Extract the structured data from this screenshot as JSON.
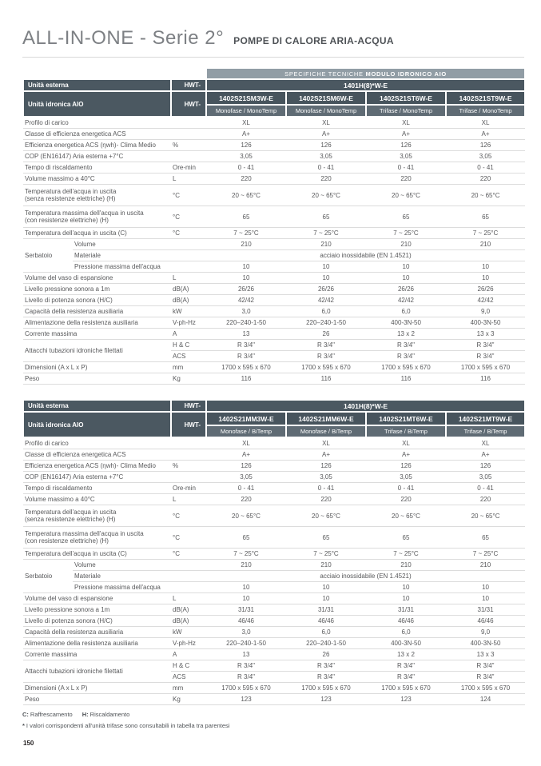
{
  "page": {
    "title": "ALL-IN-ONE - Serie 2°",
    "subtitle": "POMPE DI CALORE ARIA-ACQUA",
    "page_number": "150",
    "legend": {
      "c_key": "C:",
      "c_text": "Raffrescamento",
      "h_key": "H:",
      "h_text": "Riscaldamento"
    },
    "note_star": "*",
    "note_text": "I valori corrispondenti all'unità trifase sono consultabili in tabella tra parentesi"
  },
  "colors": {
    "header_dark": "#4b5861",
    "header_model": "#47545d",
    "header_subtype": "#5f6b74",
    "band_gray": "#919da5",
    "body_text": "#58595b",
    "divider": "#dcdcdc"
  },
  "tables": [
    {
      "spec_band": {
        "normal": "SPECIFICHE TECNICHE ",
        "bold": "MODULO IDRONICO AIO"
      },
      "header": {
        "outdoor_label": "Unità esterna",
        "outdoor_prefix": "HWT-",
        "outdoor_model": "1401H(8)*W-E",
        "hydronic_label": "Unità idronica AIO",
        "hydronic_prefix": "HWT-",
        "models": [
          "1402S21SM3W-E",
          "1402S21SM6W-E",
          "1402S21ST6W-E",
          "1402S21ST9W-E"
        ],
        "subtypes": [
          "Monofase / MonoTemp",
          "Monofase / MonoTemp",
          "Trifase / MonoTemp",
          "Trifase / MonoTemp"
        ]
      },
      "rows": [
        {
          "label": "Profilo di carico",
          "unit": "",
          "values": [
            "XL",
            "XL",
            "XL",
            "XL"
          ]
        },
        {
          "label": "Classe di efficienza energetica ACS",
          "unit": "",
          "values": [
            "A+",
            "A+",
            "A+",
            "A+"
          ]
        },
        {
          "label": "Efficienza energetica ACS (ηwh)- Clima Medio",
          "unit": "%",
          "values": [
            "126",
            "126",
            "126",
            "126"
          ]
        },
        {
          "label": "COP (EN16147) Aria esterna +7°C",
          "unit": "",
          "values": [
            "3,05",
            "3,05",
            "3,05",
            "3,05"
          ]
        },
        {
          "label": "Tempo di riscaldamento",
          "unit": "Ore-min",
          "values": [
            "0 - 41",
            "0 - 41",
            "0 - 41",
            "0 - 41"
          ]
        },
        {
          "label": "Volume massimo a 40°C",
          "unit": "L",
          "values": [
            "220",
            "220",
            "220",
            "220"
          ]
        },
        {
          "label": "Temperatura dell'acqua in uscita\n(senza resistenze elettriche) (H)",
          "unit": "°C",
          "tall": true,
          "values": [
            "20 ~ 65°C",
            "20 ~ 65°C",
            "20 ~ 65°C",
            "20 ~ 65°C"
          ]
        },
        {
          "label": "Temperatura massima dell'acqua in uscita\n(con resistenze elettriche) (H)",
          "unit": "°C",
          "tall": true,
          "values": [
            "65",
            "65",
            "65",
            "65"
          ]
        },
        {
          "label": "Temperatura dell'acqua in uscita (C)",
          "unit": "°C",
          "values": [
            "7 ~ 25°C",
            "7 ~ 25°C",
            "7 ~ 25°C",
            "7 ~ 25°C"
          ]
        },
        {
          "group": "Serbatoio",
          "group_span": 3,
          "sublabel": "Volume",
          "unit": "",
          "values": [
            "210",
            "210",
            "210",
            "210"
          ]
        },
        {
          "sublabel": "Materiale",
          "unit": "",
          "value_span": "acciaio inossidabile (EN 1.4521)"
        },
        {
          "sublabel": "Pressione massima dell'acqua",
          "unit": "",
          "values": [
            "10",
            "10",
            "10",
            "10"
          ]
        },
        {
          "label": "Volume del vaso di espansione",
          "unit": "L",
          "values": [
            "10",
            "10",
            "10",
            "10"
          ]
        },
        {
          "label": "Livello pressione sonora a 1m",
          "unit": "dB(A)",
          "values": [
            "26/26",
            "26/26",
            "26/26",
            "26/26"
          ]
        },
        {
          "label": "Livello di potenza sonora (H/C)",
          "unit": "dB(A)",
          "values": [
            "42/42",
            "42/42",
            "42/42",
            "42/42"
          ]
        },
        {
          "label": "Capacità della resistenza ausiliaria",
          "unit": "kW",
          "values": [
            "3,0",
            "6,0",
            "6,0",
            "9,0"
          ]
        },
        {
          "label": "Alimentazione della resistenza ausiliaria",
          "unit": "V-ph-Hz",
          "values": [
            "220–240-1-50",
            "220–240-1-50",
            "400-3N-50",
            "400-3N-50"
          ]
        },
        {
          "label": "Corrente massima",
          "unit": "A",
          "values": [
            "13",
            "26",
            "13 x 2",
            "13 x 3"
          ]
        },
        {
          "group": "Attacchi tubazioni idroniche filettati",
          "group_full": true,
          "group_span": 2,
          "unit": "H & C",
          "values": [
            "R 3/4\"",
            "R 3/4\"",
            "R 3/4\"",
            "R 3/4\""
          ]
        },
        {
          "in_group": true,
          "unit": "ACS",
          "values": [
            "R 3/4\"",
            "R 3/4\"",
            "R 3/4\"",
            "R 3/4\""
          ]
        },
        {
          "label": "Dimensioni (A x L x P)",
          "unit": "mm",
          "values": [
            "1700 x 595 x 670",
            "1700 x 595 x 670",
            "1700 x 595 x 670",
            "1700 x 595 x 670"
          ]
        },
        {
          "label": "Peso",
          "unit": "Kg",
          "values": [
            "116",
            "116",
            "116",
            "116"
          ]
        }
      ]
    },
    {
      "header": {
        "outdoor_label": "Unità esterna",
        "outdoor_prefix": "HWT-",
        "outdoor_model": "1401H(8)*W-E",
        "hydronic_label": "Unità idronica AIO",
        "hydronic_prefix": "HWT-",
        "models": [
          "1402S21MM3W-E",
          "1402S21MM6W-E",
          "1402S21MT6W-E",
          "1402S21MT9W-E"
        ],
        "subtypes": [
          "Monofase / BiTemp",
          "Monofase / BiTemp",
          "Trifase / BiTemp",
          "Trifase / BiTemp"
        ]
      },
      "rows": [
        {
          "label": "Profilo di carico",
          "unit": "",
          "values": [
            "XL",
            "XL",
            "XL",
            "XL"
          ]
        },
        {
          "label": "Classe di efficienza energetica ACS",
          "unit": "",
          "values": [
            "A+",
            "A+",
            "A+",
            "A+"
          ]
        },
        {
          "label": "Efficienza energetica ACS (ηwh)- Clima Medio",
          "unit": "%",
          "values": [
            "126",
            "126",
            "126",
            "126"
          ]
        },
        {
          "label": "COP (EN16147) Aria esterna +7°C",
          "unit": "",
          "values": [
            "3,05",
            "3,05",
            "3,05",
            "3,05"
          ]
        },
        {
          "label": "Tempo di riscaldamento",
          "unit": "Ore-min",
          "values": [
            "0 - 41",
            "0 - 41",
            "0 - 41",
            "0 - 41"
          ]
        },
        {
          "label": "Volume massimo a 40°C",
          "unit": "L",
          "values": [
            "220",
            "220",
            "220",
            "220"
          ]
        },
        {
          "label": "Temperatura dell'acqua in uscita\n(senza resistenze elettriche) (H)",
          "unit": "°C",
          "tall": true,
          "values": [
            "20 ~ 65°C",
            "20 ~ 65°C",
            "20 ~ 65°C",
            "20 ~ 65°C"
          ]
        },
        {
          "label": "Temperatura massima dell'acqua in uscita\n(con resistenze elettriche) (H)",
          "unit": "°C",
          "tall": true,
          "values": [
            "65",
            "65",
            "65",
            "65"
          ]
        },
        {
          "label": "Temperatura dell'acqua in uscita (C)",
          "unit": "°C",
          "values": [
            "7 ~ 25°C",
            "7 ~ 25°C",
            "7 ~ 25°C",
            "7 ~ 25°C"
          ]
        },
        {
          "group": "Serbatoio",
          "group_span": 3,
          "sublabel": "Volume",
          "unit": "",
          "values": [
            "210",
            "210",
            "210",
            "210"
          ]
        },
        {
          "sublabel": "Materiale",
          "unit": "",
          "value_span": "acciaio inossidabile (EN 1.4521)"
        },
        {
          "sublabel": "Pressione massima dell'acqua",
          "unit": "",
          "values": [
            "10",
            "10",
            "10",
            "10"
          ]
        },
        {
          "label": "Volume del vaso di espansione",
          "unit": "L",
          "values": [
            "10",
            "10",
            "10",
            "10"
          ]
        },
        {
          "label": "Livello pressione sonora a 1m",
          "unit": "dB(A)",
          "values": [
            "31/31",
            "31/31",
            "31/31",
            "31/31"
          ]
        },
        {
          "label": "Livello di potenza sonora (H/C)",
          "unit": "dB(A)",
          "values": [
            "46/46",
            "46/46",
            "46/46",
            "46/46"
          ]
        },
        {
          "label": "Capacità della resistenza ausiliaria",
          "unit": "kW",
          "values": [
            "3,0",
            "6,0",
            "6,0",
            "9,0"
          ]
        },
        {
          "label": "Alimentazione della resistenza ausiliaria",
          "unit": "V-ph-Hz",
          "values": [
            "220–240-1-50",
            "220–240-1-50",
            "400-3N-50",
            "400-3N-50"
          ]
        },
        {
          "label": "Corrente massima",
          "unit": "A",
          "values": [
            "13",
            "26",
            "13 x 2",
            "13 x 3"
          ]
        },
        {
          "group": "Attacchi tubazioni idroniche filettati",
          "group_full": true,
          "group_span": 2,
          "unit": "H & C",
          "values": [
            "R 3/4\"",
            "R 3/4\"",
            "R 3/4\"",
            "R 3/4\""
          ]
        },
        {
          "in_group": true,
          "unit": "ACS",
          "values": [
            "R 3/4\"",
            "R 3/4\"",
            "R 3/4\"",
            "R 3/4\""
          ]
        },
        {
          "label": "Dimensioni (A x L x P)",
          "unit": "mm",
          "values": [
            "1700 x 595 x 670",
            "1700 x 595 x 670",
            "1700 x 595 x 670",
            "1700 x 595 x 670"
          ]
        },
        {
          "label": "Peso",
          "unit": "Kg",
          "values": [
            "123",
            "123",
            "123",
            "124"
          ]
        }
      ]
    }
  ]
}
